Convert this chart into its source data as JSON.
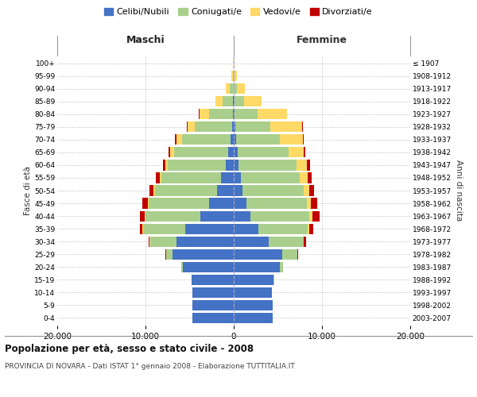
{
  "age_groups": [
    "0-4",
    "5-9",
    "10-14",
    "15-19",
    "20-24",
    "25-29",
    "30-34",
    "35-39",
    "40-44",
    "45-49",
    "50-54",
    "55-59",
    "60-64",
    "65-69",
    "70-74",
    "75-79",
    "80-84",
    "85-89",
    "90-94",
    "95-99",
    "100+"
  ],
  "birth_years": [
    "2003-2007",
    "1998-2002",
    "1993-1997",
    "1988-1992",
    "1983-1987",
    "1978-1982",
    "1973-1977",
    "1968-1972",
    "1963-1967",
    "1958-1962",
    "1953-1957",
    "1948-1952",
    "1943-1947",
    "1938-1942",
    "1933-1937",
    "1928-1932",
    "1923-1927",
    "1918-1922",
    "1913-1917",
    "1908-1912",
    "≤ 1907"
  ],
  "males": {
    "celibi": [
      4700,
      4650,
      4650,
      4800,
      5800,
      6900,
      6500,
      5500,
      3800,
      2800,
      1900,
      1400,
      900,
      600,
      350,
      220,
      110,
      50,
      15,
      8,
      3
    ],
    "coniugati": [
      0,
      0,
      0,
      0,
      180,
      800,
      3000,
      4800,
      6200,
      6800,
      7000,
      6800,
      6600,
      6200,
      5500,
      4200,
      2700,
      1200,
      400,
      100,
      15
    ],
    "vedovi": [
      0,
      0,
      0,
      0,
      0,
      0,
      15,
      40,
      80,
      120,
      180,
      220,
      280,
      380,
      650,
      850,
      1100,
      800,
      450,
      180,
      45
    ],
    "divorziati": [
      0,
      0,
      0,
      0,
      8,
      40,
      130,
      300,
      550,
      600,
      460,
      370,
      270,
      180,
      130,
      90,
      40,
      15,
      4,
      1,
      1
    ]
  },
  "females": {
    "nubili": [
      4450,
      4400,
      4350,
      4500,
      5200,
      5500,
      4000,
      2800,
      1900,
      1400,
      1000,
      800,
      580,
      420,
      260,
      170,
      100,
      50,
      25,
      8,
      4
    ],
    "coniugate": [
      0,
      0,
      0,
      50,
      380,
      1700,
      3900,
      5600,
      6700,
      6900,
      6900,
      6700,
      6500,
      5800,
      5000,
      4000,
      2600,
      1100,
      380,
      70,
      8
    ],
    "vedove": [
      0,
      0,
      0,
      0,
      0,
      15,
      60,
      170,
      300,
      450,
      640,
      850,
      1200,
      1700,
      2600,
      3600,
      3300,
      2000,
      850,
      280,
      75
    ],
    "divorziate": [
      0,
      0,
      0,
      0,
      8,
      70,
      220,
      460,
      820,
      750,
      560,
      460,
      370,
      190,
      90,
      45,
      18,
      8,
      2,
      1,
      1
    ]
  },
  "colors": {
    "celibi_nubili": "#4472C4",
    "coniugati_e": "#AACF8C",
    "vedovi_e": "#FFD966",
    "divorziati_e": "#C00000"
  },
  "legend_labels": [
    "Celibi/Nubili",
    "Coniugati/e",
    "Vedovi/e",
    "Divorziati/e"
  ],
  "xlabel_left": "Maschi",
  "xlabel_right": "Femmine",
  "ylabel_left": "Fasce di età",
  "ylabel_right": "Anni di nascita",
  "title": "Popolazione per età, sesso e stato civile - 2008",
  "subtitle": "PROVINCIA DI NOVARA - Dati ISTAT 1° gennaio 2008 - Elaborazione TUTTITALIA.IT",
  "xlim": 20000,
  "background_color": "#ffffff",
  "grid_color": "#bbbbbb"
}
